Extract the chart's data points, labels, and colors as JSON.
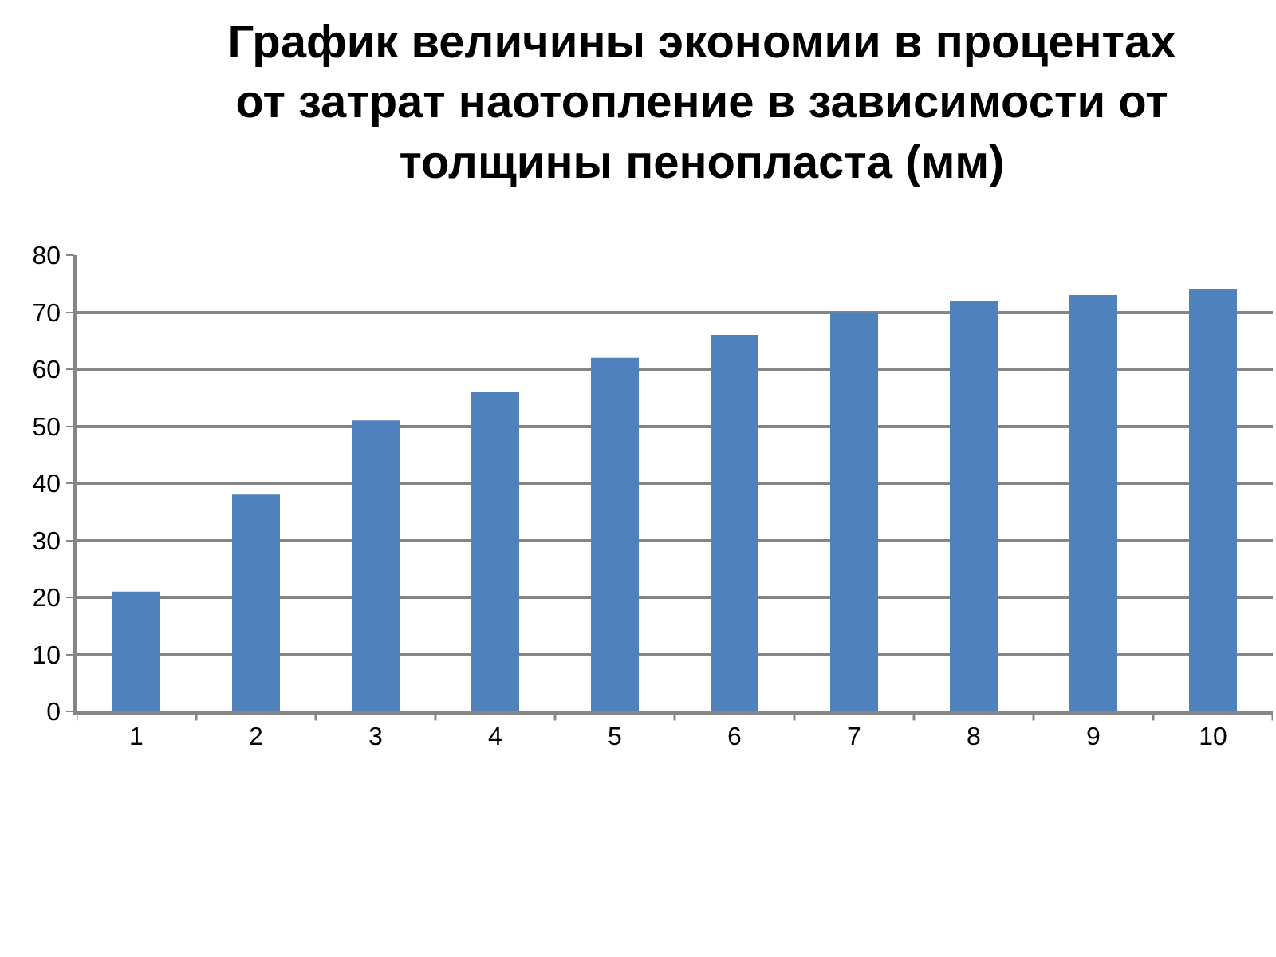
{
  "chart_data": {
    "type": "bar",
    "title": "График величины экономии в процентах\nот затрат наотопление в зависимости от\nтолщины пенопласта (мм)",
    "categories": [
      "1",
      "2",
      "3",
      "4",
      "5",
      "6",
      "7",
      "8",
      "9",
      "10"
    ],
    "values": [
      21,
      38,
      51,
      56,
      62,
      66,
      70,
      72,
      73,
      74
    ],
    "color": "#4f81bd",
    "ylim": [
      0,
      80
    ],
    "yticks": [
      0,
      10,
      20,
      30,
      40,
      50,
      60,
      70,
      80
    ],
    "grid": "y"
  }
}
